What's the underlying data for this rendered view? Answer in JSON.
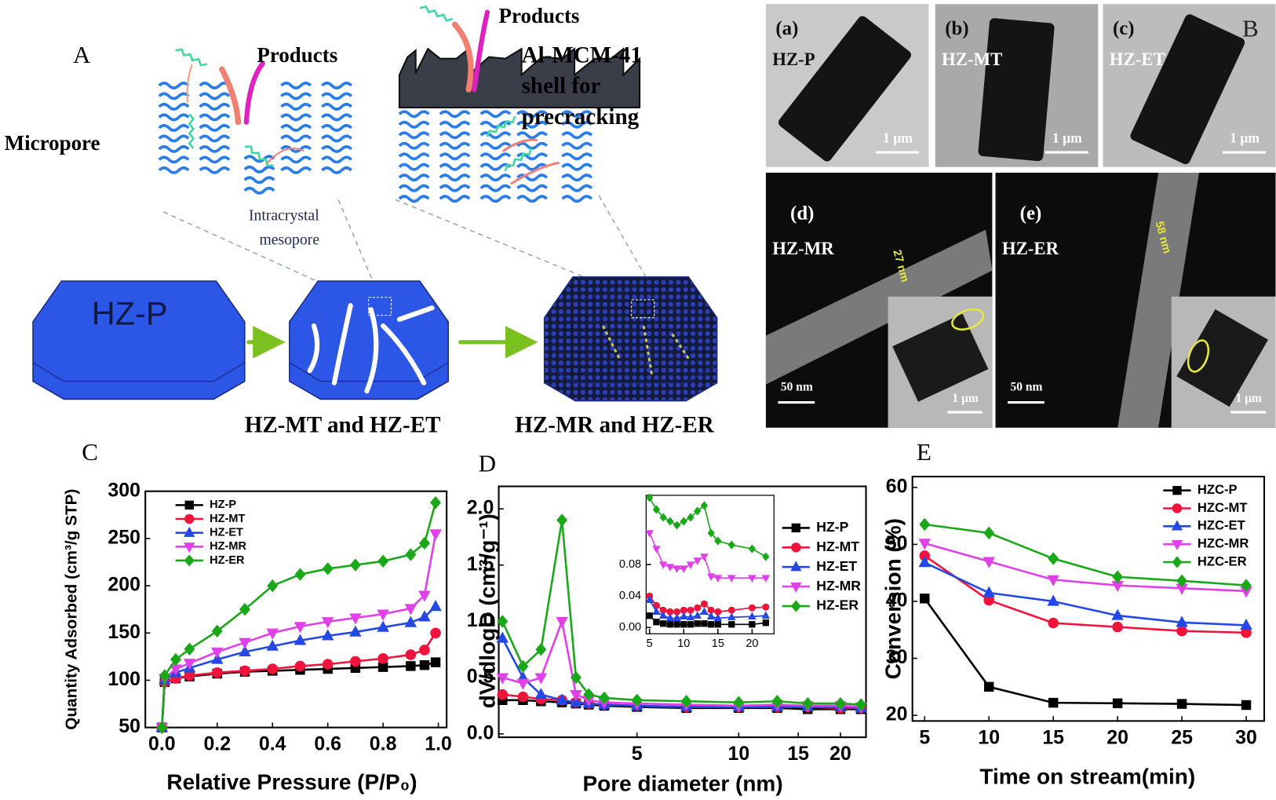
{
  "diagram": {
    "label": "A",
    "micropore": "Micropore",
    "products_left": "Products",
    "products_right": "Products",
    "shell_lines": [
      "Al-MCM-41",
      "shell for",
      "precracking"
    ],
    "mesopore_lines": [
      "Intracrystal",
      "mesopore"
    ],
    "parent": "HZ-P",
    "treated": "HZ-MT and HZ-ET",
    "coated": "HZ-MR and HZ-ER"
  },
  "micrographs": {
    "label": "B",
    "panels": [
      {
        "tag": "(a)",
        "name": "HZ-P",
        "scale": "1 μm"
      },
      {
        "tag": "(b)",
        "name": "HZ-MT",
        "scale": "1 μm"
      },
      {
        "tag": "(c)",
        "name": "HZ-ET",
        "scale": "1 μm"
      },
      {
        "tag": "(d)",
        "name": "HZ-MR",
        "thickness": "27 nm",
        "scale": "50 nm",
        "inset_scale": "1 μm"
      },
      {
        "tag": "(e)",
        "name": "HZ-ER",
        "thickness": "58 nm",
        "scale": "50 nm",
        "inset_scale": "1 μm"
      }
    ]
  },
  "chart_data": [
    {
      "type": "line",
      "label": "C",
      "xlabel": "Relative Pressure (P/P₀)",
      "ylabel": "Quantity Adsorbed (cm³/g STP)",
      "x": [
        0,
        0.01,
        0.05,
        0.1,
        0.2,
        0.3,
        0.4,
        0.5,
        0.6,
        0.7,
        0.8,
        0.9,
        0.95,
        0.99
      ],
      "xlim": [
        -0.06,
        1.03
      ],
      "ylim": [
        50,
        300
      ],
      "xticks": [
        {
          "value": 0,
          "label": "0.0"
        },
        0.2,
        0.4,
        0.6,
        0.8,
        {
          "value": 1,
          "label": "1.0"
        }
      ],
      "yticks": [
        50,
        100,
        150,
        200,
        250,
        300
      ],
      "series": [
        {
          "name": "HZ-P",
          "color": "#000000",
          "marker": "square",
          "values": [
            50,
            98,
            102,
            104,
            107,
            109,
            110,
            111,
            112,
            113,
            114,
            115,
            116,
            119
          ]
        },
        {
          "name": "HZ-MT",
          "color": "#f0143c",
          "marker": "circle",
          "values": [
            50,
            98,
            102,
            105,
            108,
            110,
            112,
            115,
            117,
            120,
            123,
            127,
            132,
            150
          ]
        },
        {
          "name": "HZ-ET",
          "color": "#2448e6",
          "marker": "triangle-up",
          "values": [
            50,
            100,
            108,
            113,
            122,
            130,
            136,
            142,
            147,
            151,
            156,
            161,
            167,
            178
          ]
        },
        {
          "name": "HZ-MR",
          "color": "#e040e8",
          "marker": "triangle-down",
          "values": [
            50,
            102,
            112,
            118,
            130,
            140,
            150,
            157,
            162,
            166,
            170,
            176,
            190,
            255
          ]
        },
        {
          "name": "HZ-ER",
          "color": "#18a818",
          "marker": "diamond",
          "values": [
            50,
            105,
            122,
            133,
            152,
            175,
            200,
            212,
            218,
            222,
            226,
            233,
            245,
            288
          ]
        }
      ]
    },
    {
      "type": "line",
      "label": "D",
      "xlabel": "Pore diameter (nm)",
      "ylabel": "dV/dlogD (cm³/g⁻¹)",
      "xscale": "log",
      "x": [
        2,
        2.3,
        2.6,
        3,
        3.3,
        3.6,
        4,
        5,
        7,
        10,
        13,
        16,
        20,
        23
      ],
      "xlim": [
        1.95,
        23.8
      ],
      "ylim": [
        -0.03,
        2.2
      ],
      "xticks": [
        5,
        10,
        15,
        20
      ],
      "yticks": [
        {
          "value": 0,
          "label": "0.0"
        },
        0.5,
        {
          "value": 1,
          "label": "1.0"
        },
        1.5,
        {
          "value": 2,
          "label": "2.0"
        }
      ],
      "series": [
        {
          "name": "HZ-P",
          "color": "#000000",
          "marker": "square",
          "values": [
            0.3,
            0.3,
            0.29,
            0.28,
            0.27,
            0.26,
            0.25,
            0.24,
            0.23,
            0.23,
            0.23,
            0.22,
            0.22,
            0.22
          ]
        },
        {
          "name": "HZ-MT",
          "color": "#f0143c",
          "marker": "circle",
          "values": [
            0.35,
            0.33,
            0.31,
            0.3,
            0.28,
            0.27,
            0.26,
            0.25,
            0.24,
            0.24,
            0.24,
            0.24,
            0.23,
            0.23
          ]
        },
        {
          "name": "HZ-ET",
          "color": "#2448e6",
          "marker": "triangle-up",
          "values": [
            0.85,
            0.5,
            0.35,
            0.3,
            0.28,
            0.27,
            0.26,
            0.25,
            0.24,
            0.24,
            0.24,
            0.24,
            0.24,
            0.23
          ]
        },
        {
          "name": "HZ-MR",
          "color": "#e040e8",
          "marker": "triangle-down",
          "values": [
            0.5,
            0.45,
            0.5,
            1.0,
            0.35,
            0.3,
            0.28,
            0.27,
            0.26,
            0.25,
            0.26,
            0.25,
            0.25,
            0.24
          ]
        },
        {
          "name": "HZ-ER",
          "color": "#18a818",
          "marker": "diamond",
          "values": [
            1.0,
            0.6,
            0.75,
            1.9,
            0.5,
            0.35,
            0.32,
            0.3,
            0.29,
            0.28,
            0.29,
            0.27,
            0.27,
            0.26
          ]
        }
      ]
    },
    {
      "type": "line",
      "x": [
        5,
        6,
        7,
        8,
        9,
        10,
        11,
        12,
        13,
        14,
        15,
        17,
        20,
        22
      ],
      "xlim": [
        4.5,
        23.2
      ],
      "ylim": [
        -0.008,
        0.168
      ],
      "xticks": [
        5,
        10,
        15,
        20
      ],
      "yticks": [
        {
          "value": 0,
          "label": "0.00"
        },
        0.04,
        0.08
      ],
      "series": [
        {
          "color": "#000000",
          "marker": "square",
          "values": [
            0.015,
            0.007,
            0.005,
            0.004,
            0.004,
            0.004,
            0.004,
            0.005,
            0.005,
            0.004,
            0.004,
            0.004,
            0.004,
            0.006
          ]
        },
        {
          "color": "#f0143c",
          "marker": "circle",
          "values": [
            0.04,
            0.028,
            0.022,
            0.02,
            0.02,
            0.022,
            0.022,
            0.025,
            0.03,
            0.022,
            0.02,
            0.022,
            0.025,
            0.026
          ]
        },
        {
          "color": "#2448e6",
          "marker": "triangle-up",
          "values": [
            0.035,
            0.02,
            0.015,
            0.012,
            0.012,
            0.014,
            0.013,
            0.015,
            0.02,
            0.014,
            0.012,
            0.013,
            0.014,
            0.015
          ]
        },
        {
          "color": "#e040e8",
          "marker": "triangle-down",
          "values": [
            0.12,
            0.1,
            0.08,
            0.077,
            0.075,
            0.075,
            0.08,
            0.085,
            0.09,
            0.065,
            0.063,
            0.063,
            0.063,
            0.063
          ]
        },
        {
          "color": "#18a818",
          "marker": "diamond",
          "values": [
            0.165,
            0.15,
            0.14,
            0.135,
            0.13,
            0.135,
            0.14,
            0.148,
            0.155,
            0.12,
            0.11,
            0.105,
            0.1,
            0.09
          ]
        }
      ]
    },
    {
      "type": "line",
      "label": "E",
      "xlabel": "Time on stream(min)",
      "ylabel": "Conversion (%)",
      "x": [
        5,
        10,
        15,
        20,
        25,
        30
      ],
      "xlim": [
        4.05,
        31.4
      ],
      "ylim": [
        19,
        61.9
      ],
      "xticks": [
        5,
        10,
        15,
        20,
        25,
        30
      ],
      "yticks": [
        20,
        30,
        40,
        50,
        60
      ],
      "series": [
        {
          "name": "HZC-P",
          "color": "#000000",
          "marker": "square",
          "values": [
            40.5,
            25,
            22.2,
            22.1,
            22,
            21.8
          ]
        },
        {
          "name": "HZC-MT",
          "color": "#f0143c",
          "marker": "circle",
          "values": [
            48,
            40.2,
            36.2,
            35.5,
            34.8,
            34.5
          ]
        },
        {
          "name": "HZC-ET",
          "color": "#2448e6",
          "marker": "triangle-up",
          "values": [
            46.8,
            41.5,
            40,
            37.5,
            36.3,
            35.8
          ]
        },
        {
          "name": "HZC-MR",
          "color": "#e040e8",
          "marker": "triangle-down",
          "values": [
            50.2,
            47,
            43.8,
            42.8,
            42.3,
            41.8
          ]
        },
        {
          "name": "HZC-ER",
          "color": "#18a818",
          "marker": "diamond",
          "values": [
            53.5,
            52,
            47.5,
            44.3,
            43.6,
            42.8
          ]
        }
      ]
    }
  ]
}
